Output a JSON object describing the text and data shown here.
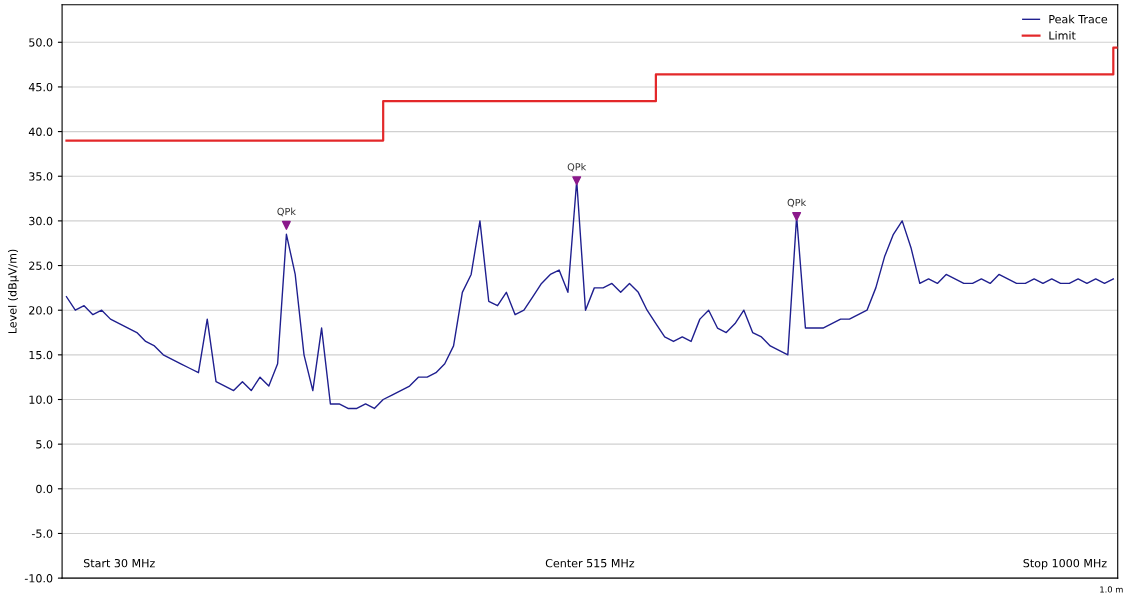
{
  "chart_data": {
    "type": "line",
    "ylabel": "Level (dBµV/m)",
    "categories": [
      null,
      null,
      null,
      null,
      null,
      null,
      null,
      null,
      null,
      null,
      null,
      null,
      null,
      null,
      null,
      null,
      null,
      null,
      null,
      null,
      null,
      null,
      null,
      null,
      null,
      null,
      null,
      null,
      null,
      null,
      null,
      null,
      null,
      null,
      null,
      null,
      null,
      null,
      null,
      null,
      null,
      null,
      null,
      null,
      null,
      null,
      null,
      null,
      null,
      null,
      null,
      null,
      null,
      null,
      null,
      null,
      null,
      null,
      null,
      null,
      null,
      null,
      null,
      null,
      null,
      null,
      null,
      null,
      null,
      null,
      null,
      null,
      null,
      null,
      null,
      null,
      null,
      null,
      null,
      null,
      null,
      null,
      null,
      null,
      null,
      null,
      null,
      null,
      null,
      null,
      null,
      null,
      null,
      null,
      null,
      null,
      null,
      null,
      null,
      null,
      null,
      null,
      null,
      null,
      null,
      null,
      null,
      null,
      null,
      null,
      null,
      null,
      null,
      null,
      null,
      null,
      null,
      null,
      null,
      null
    ],
    "series": [
      {
        "name": "Peak Trace",
        "color": "#1f1f8f",
        "values": [
          21.5,
          20,
          20.5,
          19.5,
          20,
          19,
          18.5,
          18,
          17.5,
          16.5,
          16,
          15,
          14.5,
          14,
          13.5,
          13,
          19,
          12,
          11.5,
          11,
          12,
          11,
          12.5,
          11.5,
          14,
          28.5,
          24,
          15,
          11,
          18,
          9.5,
          9.5,
          9,
          9,
          9.5,
          9,
          10,
          10.5,
          11,
          11.5,
          12.5,
          12.5,
          13,
          14,
          16,
          22,
          24,
          30,
          21,
          20.5,
          22,
          19.5,
          20,
          21.5,
          23,
          24,
          24.5,
          22,
          34.5,
          20,
          22.5,
          22.5,
          23,
          22,
          23,
          22,
          20,
          18.5,
          17,
          16.5,
          17,
          16.5,
          19,
          20,
          18,
          17.5,
          18.5,
          20,
          17.5,
          17,
          16,
          15.5,
          15,
          30.5,
          18,
          18,
          18,
          18.5,
          19,
          19,
          19.5,
          20,
          22.5,
          26,
          28.5,
          30,
          27,
          23,
          23.5,
          23,
          24,
          23.5,
          23,
          23,
          23.5,
          23,
          24,
          23.5,
          23,
          23,
          23.5,
          23,
          23.5,
          23,
          23,
          23.5,
          23,
          23.5,
          23,
          23.5
        ]
      },
      {
        "name": "Limit",
        "type": "step",
        "color": "#e3282a",
        "values": [
          39,
          39,
          39,
          39,
          39,
          39,
          39,
          39,
          39,
          39,
          39,
          39,
          39,
          39,
          39,
          39,
          39,
          39,
          39,
          39,
          39,
          39,
          39,
          39,
          39,
          39,
          39,
          39,
          39,
          39,
          39,
          39,
          39,
          39,
          39,
          39,
          43.4,
          43.4,
          43.4,
          43.4,
          43.4,
          43.4,
          43.4,
          43.4,
          43.4,
          43.4,
          43.4,
          43.4,
          43.4,
          43.4,
          43.4,
          43.4,
          43.4,
          43.4,
          43.4,
          43.4,
          43.4,
          43.4,
          43.4,
          43.4,
          43.4,
          43.4,
          43.4,
          43.4,
          43.4,
          43.4,
          43.4,
          46.4,
          46.4,
          46.4,
          46.4,
          46.4,
          46.4,
          46.4,
          46.4,
          46.4,
          46.4,
          46.4,
          46.4,
          46.4,
          46.4,
          46.4,
          46.4,
          46.4,
          46.4,
          46.4,
          46.4,
          46.4,
          46.4,
          46.4,
          46.4,
          46.4,
          46.4,
          46.4,
          46.4,
          46.4,
          46.4,
          46.4,
          46.4,
          46.4,
          46.4,
          46.4,
          46.4,
          46.4,
          46.4,
          46.4,
          46.4,
          46.4,
          46.4,
          46.4,
          46.4,
          46.4,
          46.4,
          46.4,
          46.4,
          46.4,
          46.4,
          46.4,
          46.4,
          49.4
        ]
      },
      {
        "type": "scatter",
        "color": "#8b1a8b",
        "marker": "triangle",
        "values": [
          null,
          null,
          null,
          null,
          null,
          null,
          null,
          null,
          null,
          null,
          null,
          null,
          null,
          null,
          null,
          null,
          null,
          null,
          null,
          null,
          null,
          null,
          null,
          null,
          null,
          29.5,
          null,
          null,
          null,
          null,
          null,
          null,
          null,
          null,
          null,
          null,
          null,
          null,
          null,
          null,
          null,
          null,
          null,
          null,
          null,
          null,
          null,
          null,
          null,
          null,
          null,
          null,
          null,
          null,
          null,
          null,
          null,
          null,
          34.5,
          null,
          null,
          null,
          null,
          null,
          null,
          null,
          null,
          null,
          null,
          null,
          null,
          null,
          null,
          null,
          null,
          null,
          null,
          null,
          null,
          null,
          null,
          null,
          null,
          30.5,
          null,
          null,
          null,
          null,
          null,
          null,
          null,
          null,
          null,
          null,
          null,
          null,
          null,
          null,
          null,
          null,
          null,
          null,
          null,
          null,
          null,
          null,
          null,
          null,
          null,
          null,
          null,
          null,
          null,
          null,
          null,
          null,
          null,
          null,
          null,
          null
        ],
        "value_labels": [
          null,
          null,
          null,
          null,
          null,
          null,
          null,
          null,
          null,
          null,
          null,
          null,
          null,
          null,
          null,
          null,
          null,
          null,
          null,
          null,
          null,
          null,
          null,
          null,
          null,
          "QPk",
          null,
          null,
          null,
          null,
          null,
          null,
          null,
          null,
          null,
          null,
          null,
          null,
          null,
          null,
          null,
          null,
          null,
          null,
          null,
          null,
          null,
          null,
          null,
          null,
          null,
          null,
          null,
          null,
          null,
          null,
          null,
          null,
          "QPk",
          null,
          null,
          null,
          null,
          null,
          null,
          null,
          null,
          null,
          null,
          null,
          null,
          null,
          null,
          null,
          null,
          null,
          null,
          null,
          null,
          null,
          null,
          null,
          null,
          "QPk",
          null,
          null,
          null,
          null,
          null,
          null,
          null,
          null,
          null,
          null,
          null,
          null,
          null,
          null,
          null,
          null,
          null,
          null,
          null,
          null,
          null,
          null,
          null,
          null,
          null,
          null,
          null,
          null,
          null,
          null,
          null,
          null,
          null,
          null,
          null,
          null
        ]
      }
    ],
    "ylim": [
      -10,
      54.2
    ],
    "yticks": [
      {
        "value": -10,
        "label": "-10.0"
      },
      {
        "value": -5,
        "label": "-5.0"
      },
      {
        "value": 0,
        "label": "0.0"
      },
      {
        "value": 5,
        "label": "5.0"
      },
      {
        "value": 10,
        "label": "10.0"
      },
      {
        "value": 15,
        "label": "15.0"
      },
      {
        "value": 20,
        "label": "20.0"
      },
      {
        "value": 25,
        "label": "25.0"
      },
      {
        "value": 30,
        "label": "30.0"
      },
      {
        "value": 35,
        "label": "35.0"
      },
      {
        "value": 40,
        "label": "40.0"
      },
      {
        "value": 45,
        "label": "45.0"
      },
      {
        "value": 50,
        "label": "50.0"
      }
    ],
    "tick_labels": "y",
    "grid": "y",
    "legend": "top right",
    "annotations": [
      "Start 30 MHz",
      "Center 515 MHz",
      "Stop 1000 MHz",
      "1.0 m"
    ]
  }
}
